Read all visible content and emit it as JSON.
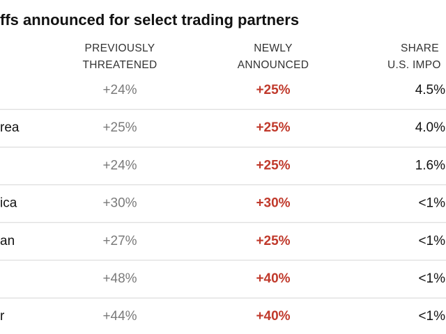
{
  "table": {
    "title": "ffs announced for select trading partners",
    "headers": [
      [
        "PREVIOUSLY",
        "THREATENED"
      ],
      [
        "NEWLY",
        "ANNOUNCED"
      ],
      [
        "SHARE",
        "U.S. IMPO"
      ]
    ],
    "rows": [
      [
        null,
        "+24%",
        "+25%",
        "4.5%"
      ],
      [
        "rea",
        "+25%",
        "+25%",
        "4.0%"
      ],
      [
        null,
        "+24%",
        "+25%",
        "1.6%"
      ],
      [
        "ica",
        "+30%",
        "+30%",
        "<1%"
      ],
      [
        "an",
        "+27%",
        "+25%",
        "<1%"
      ],
      [
        null,
        "+48%",
        "+40%",
        "<1%"
      ],
      [
        "r",
        "+44%",
        "+40%",
        "<1%"
      ]
    ]
  }
}
